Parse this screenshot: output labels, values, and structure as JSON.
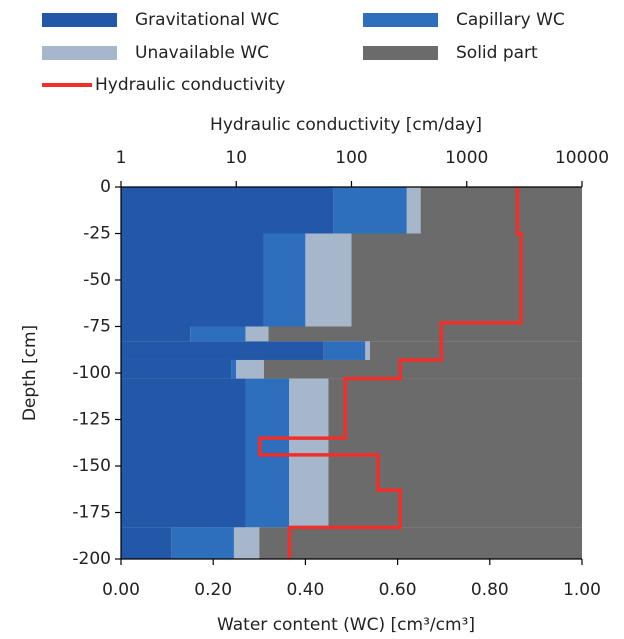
{
  "chart_data": {
    "type": "soil-profile",
    "x_label": "Water content (WC) [cm³/cm³]",
    "x2_label": "Hydraulic conductivity [cm/day]",
    "y_label": "Depth [cm]",
    "depth_bins": [
      0,
      -25,
      -75,
      -83,
      -93,
      -103,
      -183,
      -200
    ],
    "xlim": [
      0,
      1
    ],
    "xticks": [
      {
        "value": 0,
        "label": "0.00"
      },
      {
        "value": 0.2,
        "label": "0.20"
      },
      {
        "value": 0.4,
        "label": "0.40"
      },
      {
        "value": 0.6,
        "label": "0.60"
      },
      {
        "value": 0.8,
        "label": "0.80"
      },
      {
        "value": 1,
        "label": "1.00"
      }
    ],
    "x2lim": [
      1,
      10000
    ],
    "x2ticks": [
      1,
      10,
      100,
      1000,
      10000
    ],
    "x2scale": "log",
    "ylim": [
      -200,
      0
    ],
    "yticks": [
      0,
      -25,
      -50,
      -75,
      -100,
      -125,
      -150,
      -175,
      -200
    ],
    "series": [
      {
        "name": "Gravitational WC",
        "color": "#2358a8",
        "values": [
          0.46,
          0.31,
          0.15,
          0.44,
          0.24,
          0.27,
          0.11
        ]
      },
      {
        "name": "Capillary WC",
        "color": "#2e6fbd",
        "values": [
          0.16,
          0.09,
          0.12,
          0.09,
          0.01,
          0.095,
          0.135
        ]
      },
      {
        "name": "Unavailable WC",
        "color": "#a7b7cb",
        "values": [
          0.03,
          0.1,
          0.05,
          0.01,
          0.06,
          0.085,
          0.055
        ]
      },
      {
        "name": "Solid part",
        "color": "#6b6b6b",
        "values": [
          0.35,
          0.5,
          0.68,
          0.46,
          0.69,
          0.55,
          0.7
        ]
      }
    ],
    "line": {
      "name": "Hydraulic conductivity",
      "color": "#ee2f2a",
      "axis": "x2",
      "x": [
        2750,
        2750,
        2950,
        2950,
        600,
        600,
        265,
        265,
        88,
        88,
        16,
        16,
        170,
        170,
        265,
        265,
        29,
        29
      ],
      "values": [
        0,
        -25,
        -25,
        -73,
        -73,
        -93,
        -93,
        -103,
        -103,
        -135,
        -135,
        -144,
        -144,
        -163,
        -163,
        -183,
        -183,
        -200
      ]
    }
  }
}
